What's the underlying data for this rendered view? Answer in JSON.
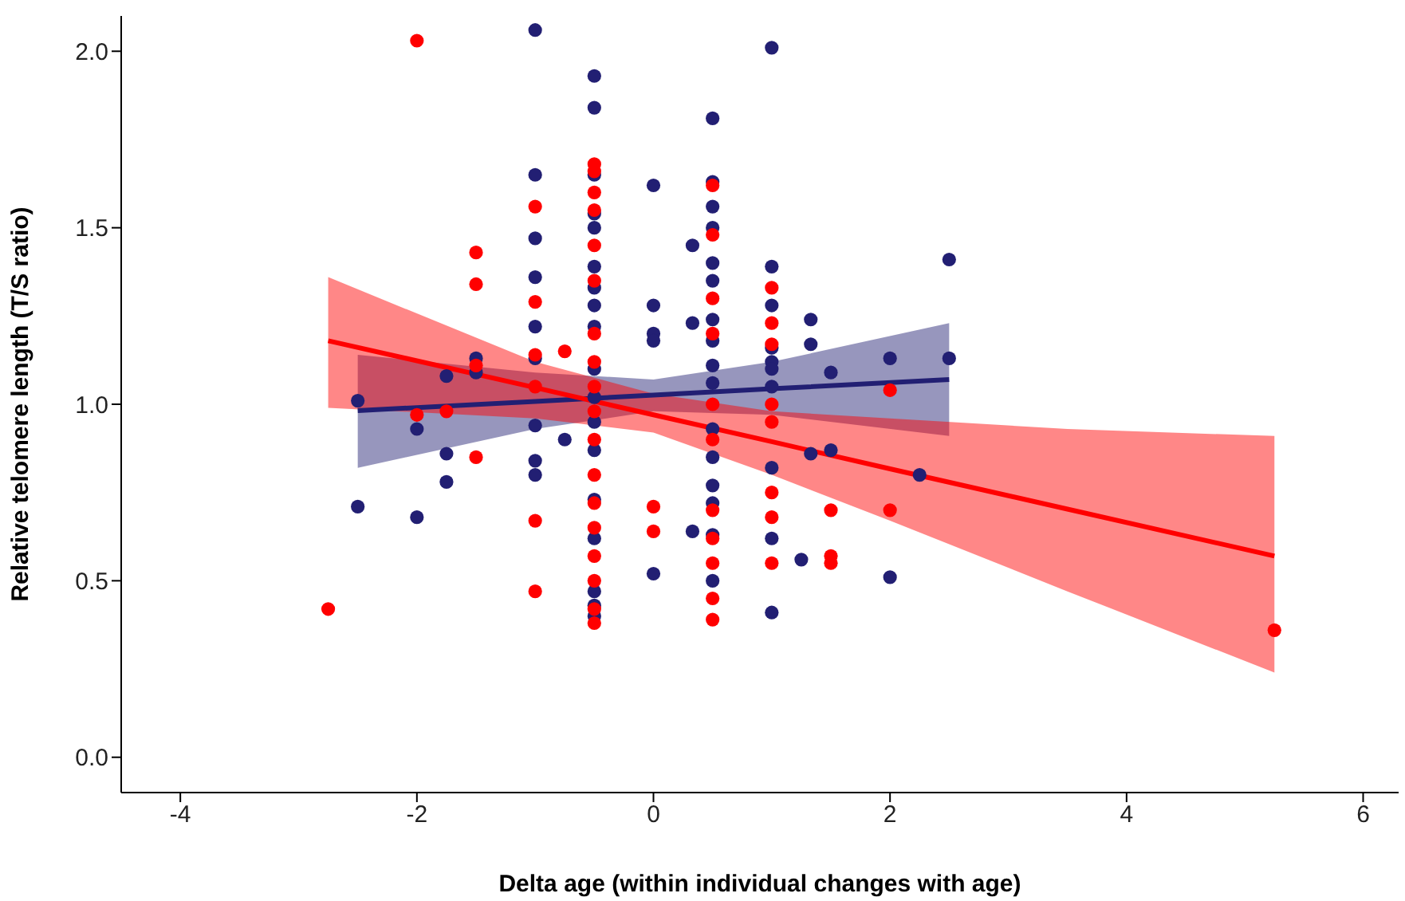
{
  "chart_data": {
    "type": "scatter",
    "xlabel": "Delta age (within individual changes with age)",
    "ylabel": "Relative telomere length (T/S ratio)",
    "xlim": [
      -4.5,
      6.3
    ],
    "ylim": [
      -0.1,
      2.1
    ],
    "xticks": [
      -4,
      -2,
      0,
      2,
      4,
      6
    ],
    "yticks": [
      {
        "value": 0,
        "label": "0.0"
      },
      {
        "value": 0.5,
        "label": "0.5"
      },
      {
        "value": 1,
        "label": "1.0"
      },
      {
        "value": 1.5,
        "label": "1.5"
      },
      {
        "value": 2,
        "label": "2.0"
      }
    ],
    "grid": false,
    "legend": false,
    "marker": "circle",
    "series": [
      {
        "color": "#221f73",
        "x": [
          -2.5,
          -2.5,
          -2,
          -2,
          -1.75,
          -1.75,
          -1.75,
          -1.5,
          -1.5,
          -1,
          -1,
          -1,
          -1,
          -1,
          -1,
          -1,
          -1,
          -1,
          -0.75,
          -0.5,
          -0.5,
          -0.5,
          -0.5,
          -0.5,
          -0.5,
          -0.5,
          -0.5,
          -0.5,
          -0.5,
          -0.5,
          -0.5,
          -0.5,
          -0.5,
          -0.5,
          -0.5,
          -0.5,
          -0.5,
          0,
          0,
          0,
          0,
          0,
          0.33,
          0.33,
          0.33,
          0.5,
          0.5,
          0.5,
          0.5,
          0.5,
          0.5,
          0.5,
          0.5,
          0.5,
          0.5,
          0.5,
          0.5,
          0.5,
          0.5,
          0.5,
          0.5,
          1,
          1,
          1,
          1,
          1,
          1,
          1,
          1,
          1,
          1,
          1.25,
          1.33,
          1.33,
          1.33,
          1.5,
          1.5,
          2,
          2,
          2.25,
          2.5,
          2.5
        ],
        "values": [
          1.01,
          0.71,
          0.93,
          0.68,
          1.08,
          0.86,
          0.78,
          1.13,
          1.09,
          2.06,
          1.65,
          1.47,
          1.36,
          1.22,
          1.13,
          0.94,
          0.84,
          0.8,
          0.9,
          1.93,
          1.84,
          1.65,
          1.54,
          1.5,
          1.39,
          1.33,
          1.28,
          1.22,
          1.1,
          1.02,
          0.95,
          0.87,
          0.73,
          0.62,
          0.47,
          0.43,
          0.4,
          1.62,
          1.28,
          1.2,
          1.18,
          0.52,
          1.45,
          1.23,
          0.64,
          1.81,
          1.63,
          1.56,
          1.5,
          1.4,
          1.35,
          1.24,
          1.18,
          1.11,
          1.06,
          0.93,
          0.85,
          0.77,
          0.72,
          0.63,
          0.5,
          2.01,
          1.39,
          1.28,
          1.16,
          1.12,
          1.1,
          1.05,
          0.82,
          0.62,
          0.41,
          0.56,
          1.24,
          1.17,
          0.86,
          1.09,
          0.87,
          1.13,
          0.51,
          0.8,
          1.41,
          1.13
        ]
      },
      {
        "color": "#ff0000",
        "x": [
          -2.75,
          -2,
          -2,
          -1.75,
          -1.5,
          -1.5,
          -1.5,
          -1.5,
          -1,
          -1,
          -1,
          -1,
          -1,
          -1,
          -0.75,
          -0.5,
          -0.5,
          -0.5,
          -0.5,
          -0.5,
          -0.5,
          -0.5,
          -0.5,
          -0.5,
          -0.5,
          -0.5,
          -0.5,
          -0.5,
          -0.5,
          -0.5,
          -0.5,
          -0.5,
          -0.5,
          0,
          0,
          0.5,
          0.5,
          0.5,
          0.5,
          0.5,
          0.5,
          0.5,
          0.5,
          0.5,
          0.5,
          0.5,
          1,
          1,
          1,
          1,
          1,
          1,
          1,
          1,
          1.5,
          1.5,
          1.5,
          2,
          2,
          5.25
        ],
        "values": [
          0.42,
          2.03,
          0.97,
          0.98,
          1.43,
          1.34,
          1.11,
          0.85,
          1.56,
          1.29,
          1.14,
          1.05,
          0.67,
          0.47,
          1.15,
          1.68,
          1.66,
          1.6,
          1.55,
          1.45,
          1.35,
          1.2,
          1.12,
          1.05,
          0.98,
          0.9,
          0.8,
          0.72,
          0.65,
          0.57,
          0.5,
          0.42,
          0.38,
          0.71,
          0.64,
          1.62,
          1.48,
          1.3,
          1.2,
          1,
          0.9,
          0.7,
          0.62,
          0.55,
          0.45,
          0.39,
          1.33,
          1.23,
          1.17,
          1,
          0.95,
          0.75,
          0.68,
          0.55,
          0.7,
          0.57,
          0.55,
          1.04,
          0.7,
          0.36
        ]
      },
      {
        "type": "line",
        "color": "#221f73",
        "marker": "none",
        "x": [
          -2.5,
          -1,
          0,
          1,
          2.5
        ],
        "values": [
          0.982,
          1.008,
          1.026,
          1.044,
          1.07
        ],
        "lower": [
          0.82,
          0.93,
          0.98,
          0.97,
          0.91
        ],
        "upper": [
          1.14,
          1.09,
          1.07,
          1.12,
          1.23
        ]
      },
      {
        "type": "line",
        "color": "#ff0000",
        "marker": "none",
        "x": [
          -2.75,
          -1,
          0,
          1,
          2,
          3.5,
          5.25
        ],
        "values": [
          1.18,
          1.047,
          0.97,
          0.894,
          0.817,
          0.703,
          0.57
        ],
        "lower": [
          0.99,
          0.96,
          0.92,
          0.8,
          0.67,
          0.47,
          0.24
        ],
        "upper": [
          1.36,
          1.12,
          1.03,
          0.98,
          0.96,
          0.93,
          0.91
        ]
      }
    ]
  }
}
